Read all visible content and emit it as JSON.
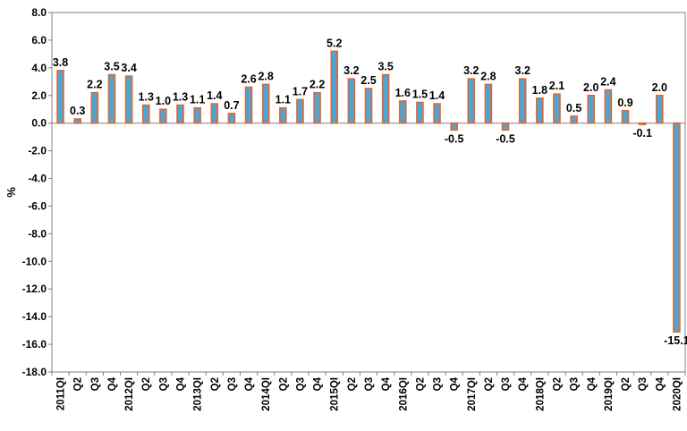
{
  "chart_data": {
    "type": "bar",
    "ylabel": "%",
    "ylim": [
      -18,
      8
    ],
    "ytick_step": 2,
    "grid": false,
    "legend": "none",
    "bar_fill": "#4aa6d6",
    "bar_stroke": "#e8642a",
    "categories": [
      "2011QI",
      "Q2",
      "Q3",
      "Q4",
      "2012QI",
      "Q2",
      "Q3",
      "Q4",
      "2013QI",
      "Q2",
      "Q3",
      "Q4",
      "2014QI",
      "Q2",
      "Q3",
      "Q4",
      "2015QI",
      "Q2",
      "Q3",
      "Q4",
      "2016QI",
      "Q2",
      "Q3",
      "Q4",
      "2017QI",
      "Q2",
      "Q3",
      "Q4",
      "2018QI",
      "Q2",
      "Q3",
      "Q4",
      "2019QI",
      "Q2",
      "Q3",
      "Q4",
      "2020QI"
    ],
    "values": [
      3.8,
      0.3,
      2.2,
      3.5,
      3.4,
      1.3,
      1.0,
      1.3,
      1.1,
      1.4,
      0.7,
      2.6,
      2.8,
      1.1,
      1.7,
      2.2,
      5.2,
      3.2,
      2.5,
      3.5,
      1.6,
      1.5,
      1.4,
      -0.5,
      3.2,
      2.8,
      -0.5,
      3.2,
      1.8,
      2.1,
      0.5,
      2.0,
      2.4,
      0.9,
      -0.1,
      2.0,
      -15.1
    ],
    "value_labels": [
      "3.8",
      "0.3",
      "2.2",
      "3.5",
      "3.4",
      "1.3",
      "1.0",
      "1.3",
      "1.1",
      "1.4",
      "0.7",
      "2.6",
      "2.8",
      "1.1",
      "1.7",
      "2.2",
      "5.2",
      "3.2",
      "2.5",
      "3.5",
      "1.6",
      "1.5",
      "1.4",
      "-0.5",
      "3.2",
      "2.8",
      "-0.5",
      "3.2",
      "1.8",
      "2.1",
      "0.5",
      "2.0",
      "2.4",
      "0.9",
      "-0.1",
      "2.0",
      "-15.1"
    ],
    "ytick_labels": [
      "8.0",
      "6.0",
      "4.0",
      "2.0",
      "0.0",
      "-2.0",
      "-4.0",
      "-6.0",
      "-8.0",
      "-10.0",
      "-12.0",
      "-14.0",
      "-16.0",
      "-18.0"
    ]
  }
}
